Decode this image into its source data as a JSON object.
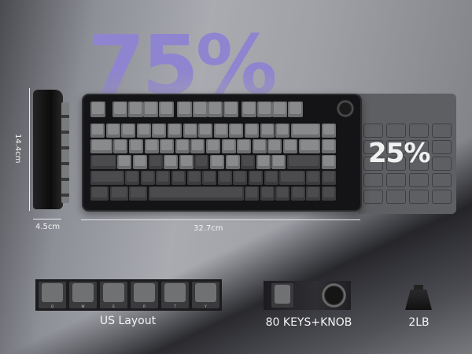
{
  "headline": "75%",
  "panel_label": "25%",
  "dimensions": {
    "height": "14.4cm",
    "depth": "4.5cm",
    "width": "32.7cm"
  },
  "features": [
    {
      "label": "US Layout",
      "icon": "keycaps-qwerty-icon",
      "keys": [
        "Q",
        "W",
        "E",
        "R",
        "T",
        "Y"
      ]
    },
    {
      "label": "80 KEYS+KNOB",
      "icon": "esc-key-knob-icon"
    },
    {
      "label": "2LB",
      "icon": "weight-icon"
    }
  ],
  "colors": {
    "headline": "#8f84cf",
    "keyboard": "#141416",
    "light_keys": "#6d6e70",
    "dark_keys": "#3c3c3e"
  }
}
